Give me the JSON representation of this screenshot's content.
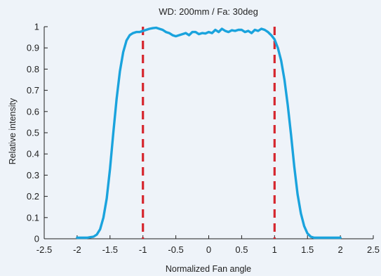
{
  "colors": {
    "background": "#eef3f9",
    "curve": "#1aa3dd",
    "marker_line": "#d6262e",
    "axis": "#1f1f1f"
  },
  "chart_data": {
    "type": "line",
    "title": "WD: 200mm / Fa: 30deg",
    "xlabel": "Normalized Fan angle",
    "ylabel": "Relative intensity",
    "xlim": [
      -2.5,
      2.5
    ],
    "ylim": [
      0,
      1
    ],
    "xticks": [
      -2.5,
      -2,
      -1.5,
      -1,
      -0.5,
      0,
      0.5,
      1,
      1.5,
      2,
      2.5
    ],
    "xtick_labels": [
      "-2.5",
      "-2",
      "-1.5",
      "-1",
      "-0.5",
      "0",
      "0.5",
      "1",
      "1.5",
      "2",
      "2.5"
    ],
    "yticks": [
      0,
      0.1,
      0.2,
      0.3,
      0.4,
      0.5,
      0.6,
      0.7,
      0.8,
      0.9,
      1
    ],
    "ytick_labels": [
      "0",
      "0.1",
      "0.2",
      "0.3",
      "0.4",
      "0.5",
      "0.6",
      "0.7",
      "0.8",
      "0.9",
      "1"
    ],
    "grid": false,
    "series": [
      {
        "style": "solid",
        "x": [
          -2.0,
          -1.85,
          -1.75,
          -1.7,
          -1.65,
          -1.6,
          -1.55,
          -1.5,
          -1.45,
          -1.4,
          -1.35,
          -1.3,
          -1.25,
          -1.2,
          -1.15,
          -1.1,
          -1.05,
          -1.0,
          -0.95,
          -0.9,
          -0.85,
          -0.8,
          -0.75,
          -0.7,
          -0.65,
          -0.6,
          -0.55,
          -0.5,
          -0.45,
          -0.4,
          -0.35,
          -0.3,
          -0.25,
          -0.2,
          -0.15,
          -0.1,
          -0.05,
          0.0,
          0.05,
          0.1,
          0.15,
          0.2,
          0.25,
          0.3,
          0.35,
          0.4,
          0.45,
          0.5,
          0.55,
          0.6,
          0.65,
          0.7,
          0.75,
          0.8,
          0.85,
          0.9,
          0.95,
          1.0,
          1.05,
          1.1,
          1.15,
          1.2,
          1.25,
          1.3,
          1.35,
          1.4,
          1.45,
          1.5,
          1.55,
          1.6,
          1.65,
          1.7,
          1.75,
          1.8,
          1.9,
          2.0
        ],
        "y": [
          0.005,
          0.005,
          0.01,
          0.02,
          0.045,
          0.1,
          0.19,
          0.33,
          0.5,
          0.66,
          0.79,
          0.88,
          0.935,
          0.96,
          0.97,
          0.975,
          0.975,
          0.98,
          0.985,
          0.99,
          0.993,
          0.995,
          0.99,
          0.985,
          0.975,
          0.97,
          0.96,
          0.955,
          0.96,
          0.965,
          0.97,
          0.96,
          0.975,
          0.975,
          0.965,
          0.97,
          0.968,
          0.975,
          0.97,
          0.985,
          0.975,
          0.99,
          0.98,
          0.975,
          0.983,
          0.98,
          0.985,
          0.985,
          0.975,
          0.98,
          0.97,
          0.985,
          0.98,
          0.99,
          0.985,
          0.975,
          0.96,
          0.94,
          0.9,
          0.84,
          0.75,
          0.63,
          0.49,
          0.34,
          0.21,
          0.12,
          0.06,
          0.025,
          0.01,
          0.005,
          0.005,
          0.005,
          0.005,
          0.005,
          0.005,
          0.005
        ]
      }
    ],
    "vertical_markers": [
      {
        "x": -1,
        "style": "dashed"
      },
      {
        "x": 1,
        "style": "dashed"
      }
    ]
  }
}
